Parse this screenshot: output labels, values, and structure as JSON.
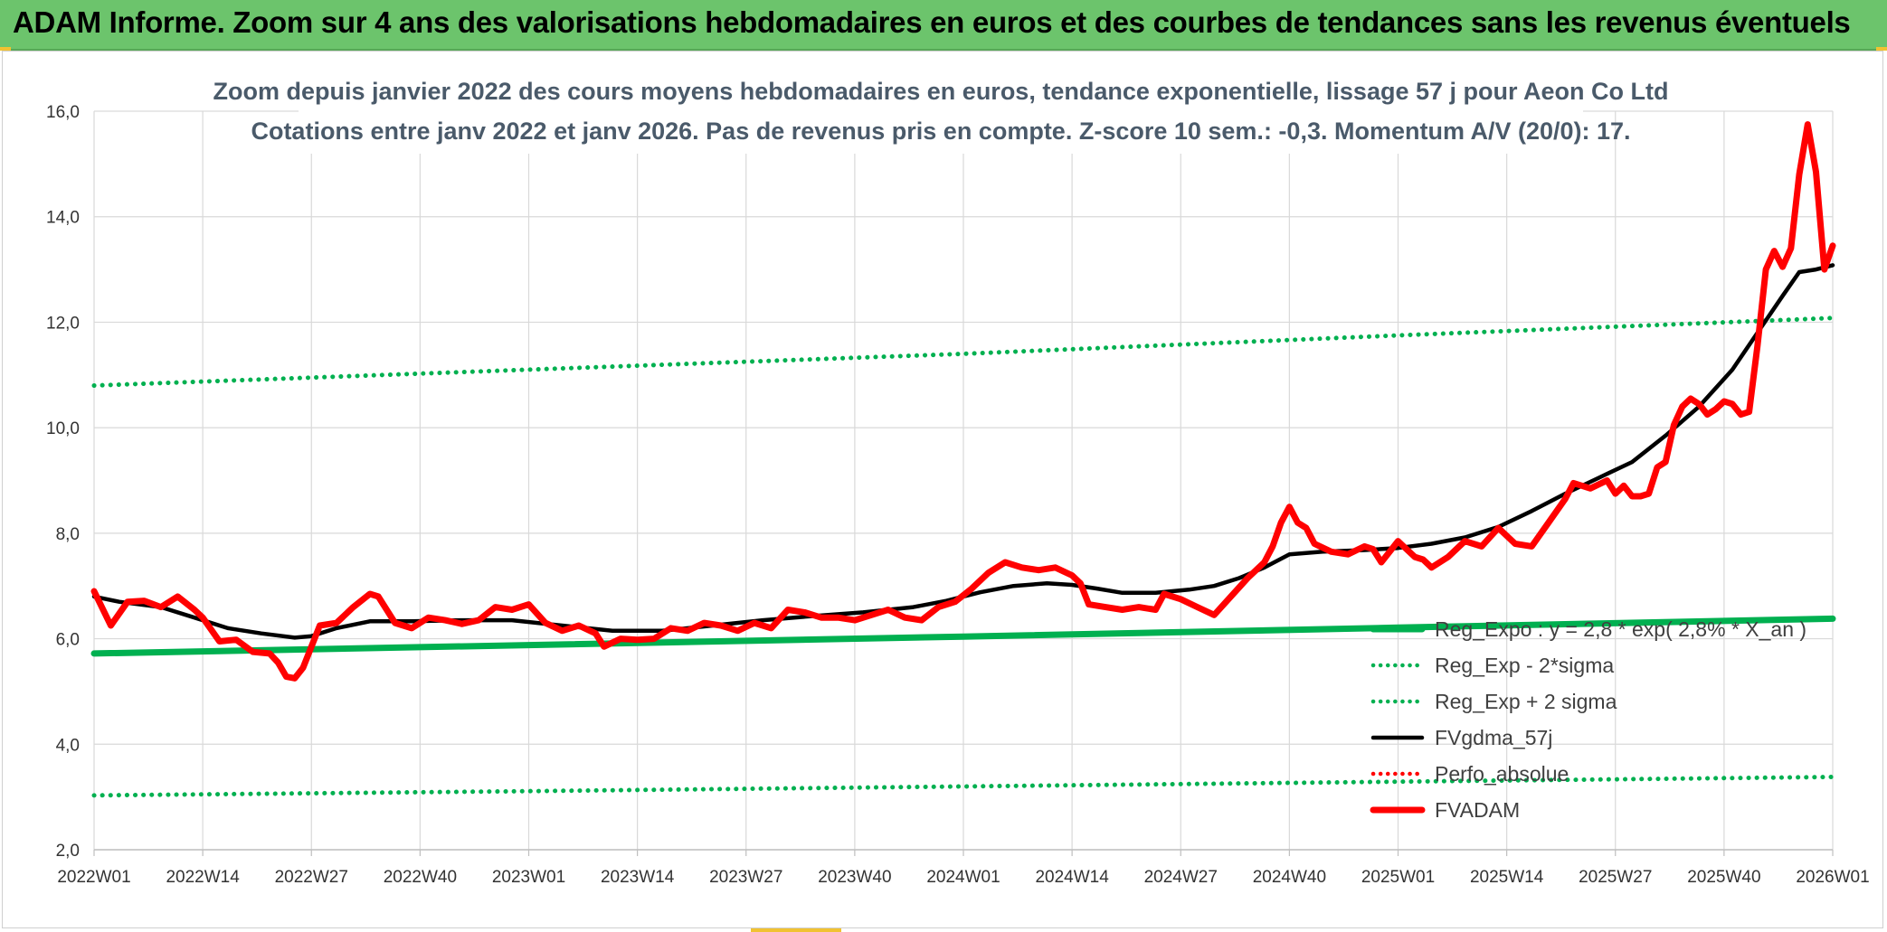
{
  "header": {
    "title": "ADAM Informe. Zoom sur 4 ans des valorisations hebdomadaires en euros et des courbes de tendances sans les revenus éventuels"
  },
  "colors": {
    "banner": "#6cc46c",
    "reg_expo": "#00b050",
    "sigma": "#00b050",
    "fvgdma": "#000000",
    "perfo": "#ff0000",
    "fvadam": "#ff0000",
    "grid": "#d9d9d9"
  },
  "chart_data": {
    "type": "line",
    "title": "Zoom depuis janvier 2022 des cours moyens hebdomadaires en euros, tendance exponentielle, lissage 57 j pour Aeon Co Ltd",
    "subtitle": "Cotations entre janv 2022 et janv 2026. Pas de revenus pris en compte. Z-score 10 sem.: -0,3. Momentum A/V (20/0): 17.",
    "xlabel": "",
    "ylabel": "",
    "ylim": [
      2.0,
      16.0
    ],
    "yticks": [
      "2,0",
      "4,0",
      "6,0",
      "8,0",
      "10,0",
      "12,0",
      "14,0",
      "16,0"
    ],
    "xlim": [
      0,
      208
    ],
    "xticks": [
      {
        "week": 0,
        "label": "2022W01"
      },
      {
        "week": 13,
        "label": "2022W14"
      },
      {
        "week": 26,
        "label": "2022W27"
      },
      {
        "week": 39,
        "label": "2022W40"
      },
      {
        "week": 52,
        "label": "2023W01"
      },
      {
        "week": 65,
        "label": "2023W14"
      },
      {
        "week": 78,
        "label": "2023W27"
      },
      {
        "week": 91,
        "label": "2023W40"
      },
      {
        "week": 104,
        "label": "2024W01"
      },
      {
        "week": 117,
        "label": "2024W14"
      },
      {
        "week": 130,
        "label": "2024W27"
      },
      {
        "week": 143,
        "label": "2024W40"
      },
      {
        "week": 156,
        "label": "2025W01"
      },
      {
        "week": 169,
        "label": "2025W14"
      },
      {
        "week": 182,
        "label": "2025W27"
      },
      {
        "week": 195,
        "label": "2025W40"
      },
      {
        "week": 208,
        "label": "2026W01"
      }
    ],
    "grid": true,
    "legend_position": "bottom-right",
    "series": [
      {
        "name": "Reg_Expo : y = 2,8 * exp( 2,8% * X_an )",
        "style": "solid-thick",
        "color": "#00b050",
        "points": [
          [
            0,
            5.72
          ],
          [
            52,
            5.88
          ],
          [
            104,
            6.04
          ],
          [
            156,
            6.21
          ],
          [
            208,
            6.38
          ]
        ]
      },
      {
        "name": "Reg_Exp - 2*sigma",
        "style": "dotted",
        "color": "#00b050",
        "points": [
          [
            0,
            3.03
          ],
          [
            52,
            3.11
          ],
          [
            104,
            3.2
          ],
          [
            156,
            3.29
          ],
          [
            208,
            3.38
          ]
        ]
      },
      {
        "name": "Reg_Exp + 2 sigma",
        "style": "dotted",
        "color": "#00b050",
        "points": [
          [
            0,
            10.8
          ],
          [
            52,
            11.1
          ],
          [
            104,
            11.4
          ],
          [
            156,
            11.75
          ],
          [
            208,
            12.08
          ]
        ]
      },
      {
        "name": "FVgdma_57j",
        "style": "solid",
        "color": "#000000",
        "points": [
          [
            0,
            6.8
          ],
          [
            3,
            6.7
          ],
          [
            8,
            6.6
          ],
          [
            12,
            6.4
          ],
          [
            16,
            6.2
          ],
          [
            20,
            6.1
          ],
          [
            24,
            6.02
          ],
          [
            26,
            6.05
          ],
          [
            29,
            6.2
          ],
          [
            33,
            6.33
          ],
          [
            38,
            6.33
          ],
          [
            44,
            6.35
          ],
          [
            50,
            6.35
          ],
          [
            56,
            6.25
          ],
          [
            62,
            6.15
          ],
          [
            68,
            6.15
          ],
          [
            74,
            6.25
          ],
          [
            80,
            6.35
          ],
          [
            86,
            6.43
          ],
          [
            92,
            6.5
          ],
          [
            98,
            6.6
          ],
          [
            102,
            6.72
          ],
          [
            106,
            6.88
          ],
          [
            110,
            7.0
          ],
          [
            114,
            7.05
          ],
          [
            117,
            7.02
          ],
          [
            120,
            6.95
          ],
          [
            123,
            6.87
          ],
          [
            127,
            6.87
          ],
          [
            131,
            6.93
          ],
          [
            134,
            7.0
          ],
          [
            137,
            7.15
          ],
          [
            140,
            7.35
          ],
          [
            143,
            7.6
          ],
          [
            147,
            7.65
          ],
          [
            152,
            7.68
          ],
          [
            156,
            7.72
          ],
          [
            160,
            7.8
          ],
          [
            164,
            7.92
          ],
          [
            168,
            8.12
          ],
          [
            172,
            8.42
          ],
          [
            176,
            8.75
          ],
          [
            180,
            9.05
          ],
          [
            184,
            9.35
          ],
          [
            188,
            9.85
          ],
          [
            192,
            10.4
          ],
          [
            196,
            11.1
          ],
          [
            199,
            11.8
          ],
          [
            202,
            12.5
          ],
          [
            204,
            12.95
          ],
          [
            206,
            13.0
          ],
          [
            208,
            13.08
          ]
        ]
      },
      {
        "name": "Perfo_absolue",
        "style": "dotted",
        "color": "#ff0000",
        "points": []
      },
      {
        "name": "FVADAM",
        "style": "solid-thick",
        "color": "#ff0000",
        "points": [
          [
            0,
            6.9
          ],
          [
            2,
            6.25
          ],
          [
            4,
            6.7
          ],
          [
            6,
            6.72
          ],
          [
            8,
            6.6
          ],
          [
            10,
            6.8
          ],
          [
            12,
            6.55
          ],
          [
            13,
            6.4
          ],
          [
            15,
            5.95
          ],
          [
            17,
            5.98
          ],
          [
            19,
            5.75
          ],
          [
            21,
            5.72
          ],
          [
            22,
            5.55
          ],
          [
            23,
            5.28
          ],
          [
            24,
            5.25
          ],
          [
            25,
            5.45
          ],
          [
            27,
            6.25
          ],
          [
            29,
            6.3
          ],
          [
            31,
            6.6
          ],
          [
            33,
            6.85
          ],
          [
            34,
            6.8
          ],
          [
            36,
            6.3
          ],
          [
            38,
            6.2
          ],
          [
            40,
            6.4
          ],
          [
            42,
            6.35
          ],
          [
            44,
            6.28
          ],
          [
            46,
            6.35
          ],
          [
            48,
            6.6
          ],
          [
            50,
            6.55
          ],
          [
            52,
            6.65
          ],
          [
            54,
            6.3
          ],
          [
            56,
            6.15
          ],
          [
            58,
            6.25
          ],
          [
            60,
            6.1
          ],
          [
            61,
            5.85
          ],
          [
            63,
            6.0
          ],
          [
            65,
            5.98
          ],
          [
            67,
            6.0
          ],
          [
            69,
            6.2
          ],
          [
            71,
            6.15
          ],
          [
            73,
            6.3
          ],
          [
            75,
            6.25
          ],
          [
            77,
            6.15
          ],
          [
            79,
            6.3
          ],
          [
            81,
            6.2
          ],
          [
            83,
            6.55
          ],
          [
            85,
            6.5
          ],
          [
            87,
            6.4
          ],
          [
            89,
            6.4
          ],
          [
            91,
            6.35
          ],
          [
            93,
            6.45
          ],
          [
            95,
            6.55
          ],
          [
            97,
            6.4
          ],
          [
            99,
            6.35
          ],
          [
            101,
            6.6
          ],
          [
            103,
            6.7
          ],
          [
            105,
            6.95
          ],
          [
            107,
            7.25
          ],
          [
            109,
            7.45
          ],
          [
            111,
            7.35
          ],
          [
            113,
            7.3
          ],
          [
            115,
            7.35
          ],
          [
            117,
            7.2
          ],
          [
            118,
            7.05
          ],
          [
            119,
            6.65
          ],
          [
            121,
            6.6
          ],
          [
            123,
            6.55
          ],
          [
            125,
            6.6
          ],
          [
            127,
            6.55
          ],
          [
            128,
            6.85
          ],
          [
            130,
            6.75
          ],
          [
            132,
            6.6
          ],
          [
            134,
            6.45
          ],
          [
            136,
            6.8
          ],
          [
            138,
            7.15
          ],
          [
            140,
            7.45
          ],
          [
            141,
            7.75
          ],
          [
            142,
            8.2
          ],
          [
            143,
            8.5
          ],
          [
            144,
            8.2
          ],
          [
            145,
            8.1
          ],
          [
            146,
            7.8
          ],
          [
            148,
            7.65
          ],
          [
            150,
            7.6
          ],
          [
            152,
            7.75
          ],
          [
            153,
            7.7
          ],
          [
            154,
            7.45
          ],
          [
            156,
            7.85
          ],
          [
            157,
            7.7
          ],
          [
            158,
            7.55
          ],
          [
            159,
            7.5
          ],
          [
            160,
            7.35
          ],
          [
            162,
            7.55
          ],
          [
            164,
            7.85
          ],
          [
            166,
            7.75
          ],
          [
            168,
            8.1
          ],
          [
            170,
            7.8
          ],
          [
            172,
            7.75
          ],
          [
            174,
            8.2
          ],
          [
            176,
            8.65
          ],
          [
            177,
            8.95
          ],
          [
            179,
            8.85
          ],
          [
            181,
            9.0
          ],
          [
            182,
            8.75
          ],
          [
            183,
            8.9
          ],
          [
            184,
            8.7
          ],
          [
            185,
            8.7
          ],
          [
            186,
            8.75
          ],
          [
            187,
            9.25
          ],
          [
            188,
            9.35
          ],
          [
            189,
            10.05
          ],
          [
            190,
            10.4
          ],
          [
            191,
            10.55
          ],
          [
            192,
            10.45
          ],
          [
            193,
            10.25
          ],
          [
            194,
            10.35
          ],
          [
            195,
            10.5
          ],
          [
            196,
            10.45
          ],
          [
            197,
            10.25
          ],
          [
            198,
            10.3
          ],
          [
            199,
            11.55
          ],
          [
            200,
            13.0
          ],
          [
            201,
            13.35
          ],
          [
            202,
            13.05
          ],
          [
            203,
            13.4
          ],
          [
            204,
            14.8
          ],
          [
            205,
            15.75
          ],
          [
            206,
            14.85
          ],
          [
            207,
            13.0
          ],
          [
            208,
            13.45
          ]
        ]
      }
    ]
  }
}
